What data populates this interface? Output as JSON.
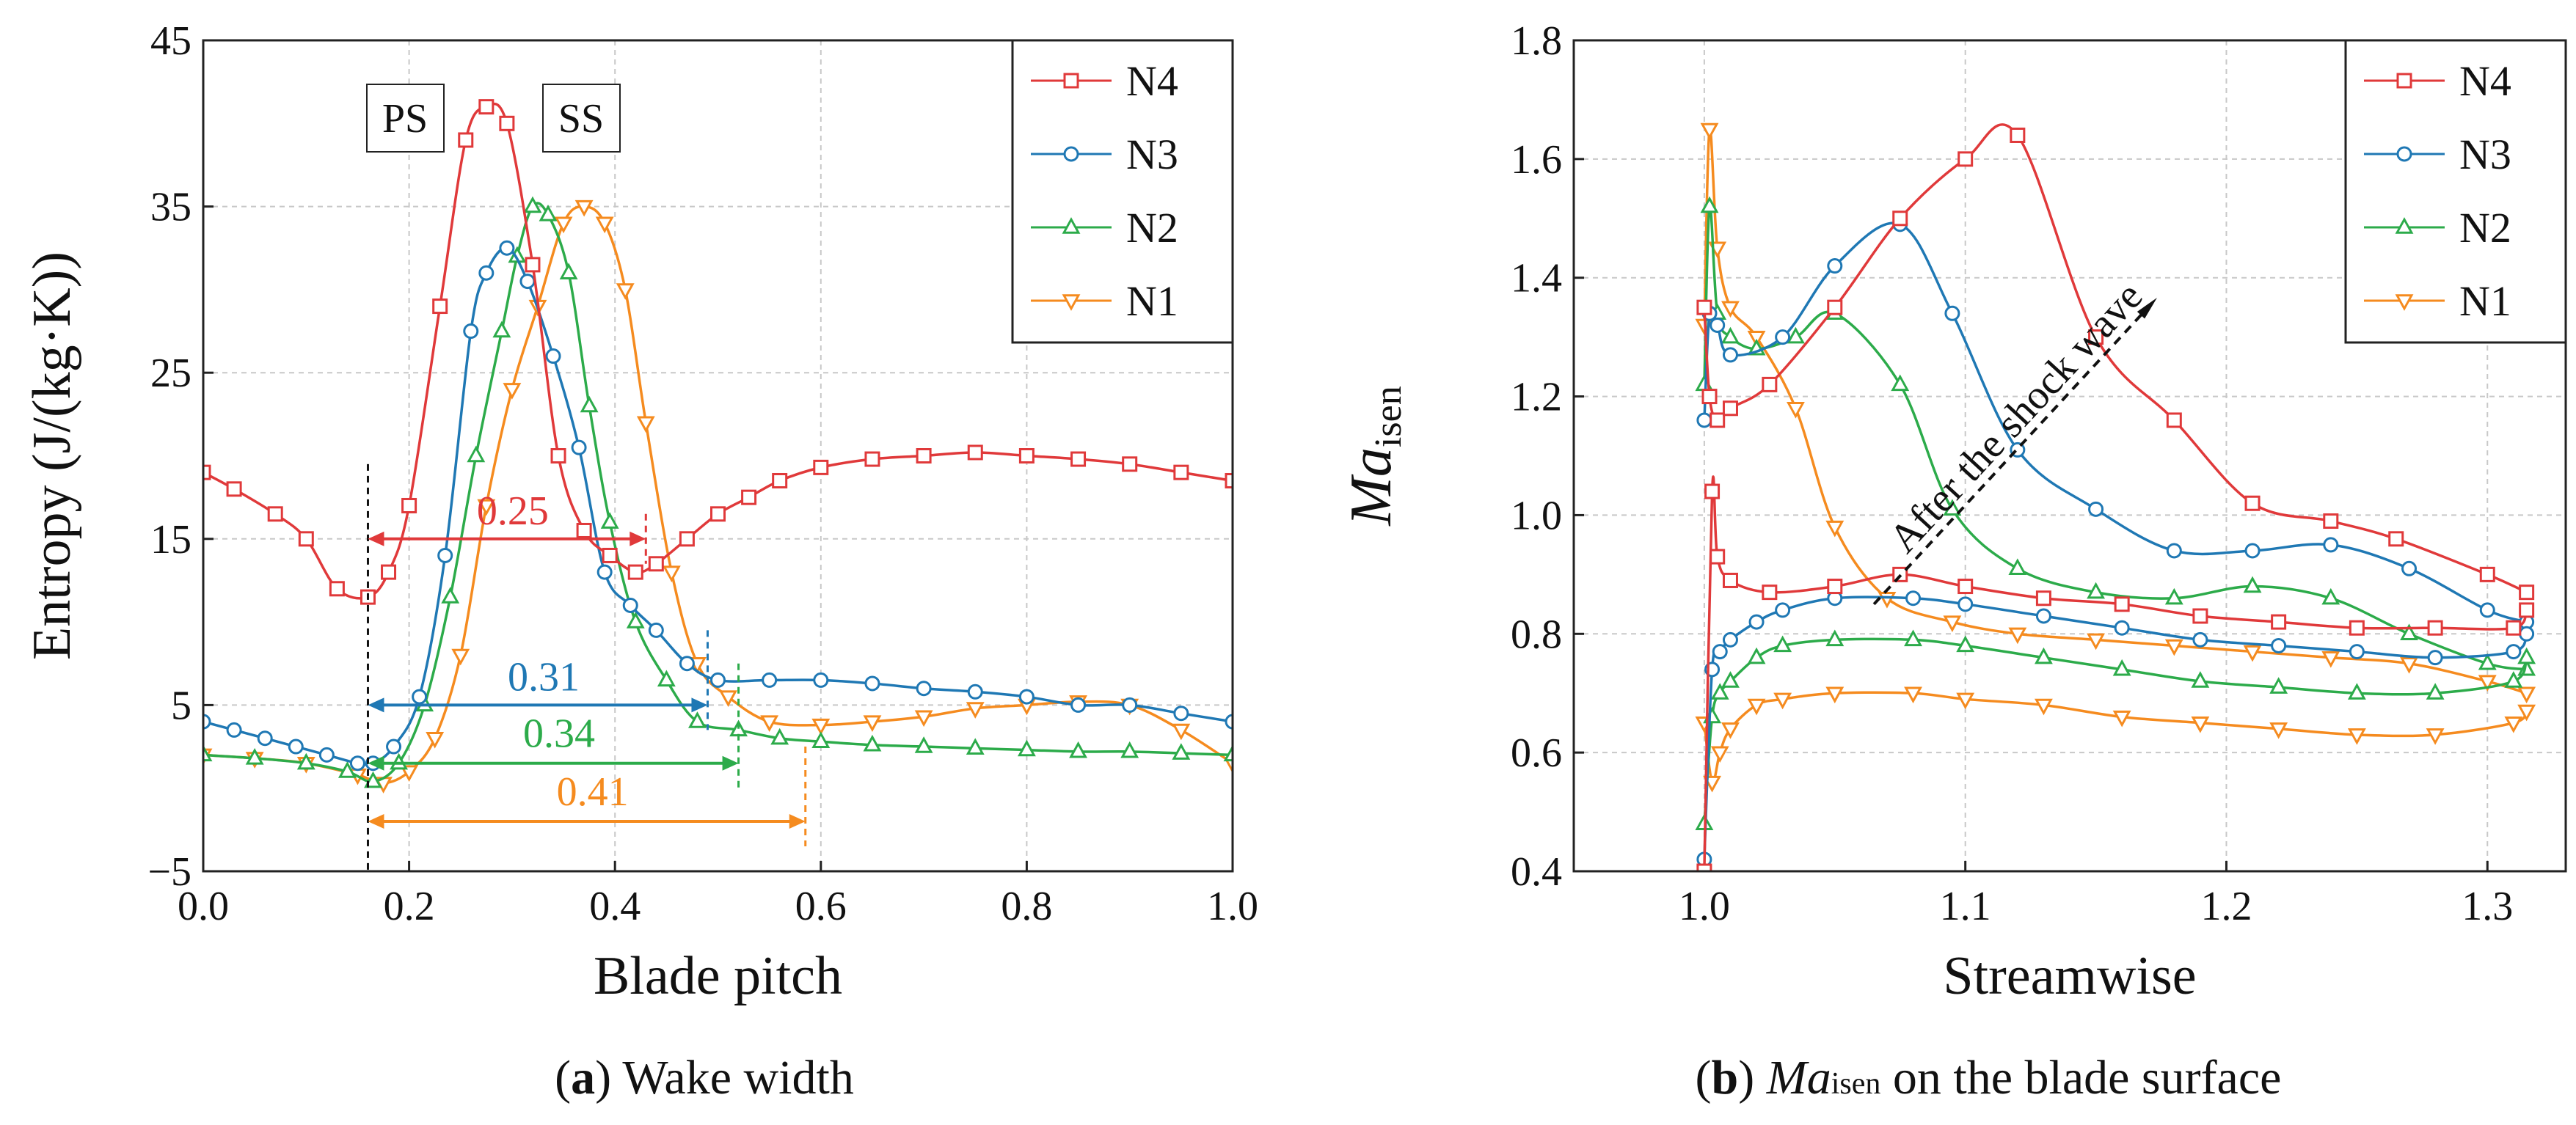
{
  "colors": {
    "N4": "#e0393a",
    "N3": "#1f78b4",
    "N2": "#2cab4a",
    "N1": "#f58b1f"
  },
  "captions": {
    "a": {
      "letter": "a",
      "text": "Wake width"
    },
    "b": {
      "letter": "b",
      "text_pre": "Ma",
      "text_sub": "isen",
      "text_post": "on the blade surface"
    }
  },
  "chart_data": [
    {
      "type": "line",
      "id": "a",
      "xlabel": "Blade pitch",
      "ylabel": "Entropy (J/(kg·K))",
      "xlim": [
        0,
        1
      ],
      "ylim": [
        -5,
        45
      ],
      "xticks": [
        0,
        0.2,
        0.4,
        0.6,
        0.8,
        1.0
      ],
      "xtick_labels": [
        "0.0",
        "0.2",
        "0.4",
        "0.6",
        "0.8",
        "1.0"
      ],
      "yticks": [
        -5,
        5,
        15,
        25,
        35,
        45
      ],
      "ytick_labels": [
        "−5",
        "5",
        "15",
        "25",
        "35",
        "45"
      ],
      "grid": true,
      "legend": "top-right",
      "series": [
        {
          "name": "N4",
          "marker": "square",
          "color": "#e0393a",
          "x": [
            0,
            0.03,
            0.07,
            0.1,
            0.13,
            0.16,
            0.18,
            0.2,
            0.23,
            0.255,
            0.275,
            0.295,
            0.32,
            0.345,
            0.37,
            0.395,
            0.42,
            0.44,
            0.47,
            0.5,
            0.53,
            0.56,
            0.6,
            0.65,
            0.7,
            0.75,
            0.8,
            0.85,
            0.9,
            0.95,
            1.0
          ],
          "y": [
            19,
            18,
            16.5,
            15,
            12,
            11.5,
            13,
            17,
            29,
            39,
            41,
            40,
            31.5,
            20,
            15.5,
            14,
            13,
            13.5,
            15,
            16.5,
            17.5,
            18.5,
            19.3,
            19.8,
            20,
            20.2,
            20,
            19.8,
            19.5,
            19,
            18.5
          ]
        },
        {
          "name": "N3",
          "marker": "circle",
          "color": "#1f78b4",
          "x": [
            0,
            0.03,
            0.06,
            0.09,
            0.12,
            0.15,
            0.165,
            0.185,
            0.21,
            0.235,
            0.26,
            0.275,
            0.295,
            0.315,
            0.34,
            0.365,
            0.39,
            0.415,
            0.44,
            0.47,
            0.5,
            0.55,
            0.6,
            0.65,
            0.7,
            0.75,
            0.8,
            0.85,
            0.9,
            0.95,
            1.0
          ],
          "y": [
            4,
            3.5,
            3,
            2.5,
            2,
            1.5,
            1.5,
            2.5,
            5.5,
            14,
            27.5,
            31,
            32.5,
            30.5,
            26,
            20.5,
            13,
            11,
            9.5,
            7.5,
            6.5,
            6.5,
            6.5,
            6.3,
            6,
            5.8,
            5.5,
            5,
            5,
            4.5,
            4
          ]
        },
        {
          "name": "N2",
          "marker": "triangle-up",
          "color": "#2cab4a",
          "x": [
            0,
            0.05,
            0.1,
            0.14,
            0.165,
            0.19,
            0.215,
            0.24,
            0.265,
            0.29,
            0.305,
            0.32,
            0.335,
            0.355,
            0.375,
            0.395,
            0.42,
            0.45,
            0.48,
            0.52,
            0.56,
            0.6,
            0.65,
            0.7,
            0.75,
            0.8,
            0.85,
            0.9,
            0.95,
            1.0
          ],
          "y": [
            2,
            1.8,
            1.5,
            1,
            0.4,
            1.5,
            5,
            11.5,
            20,
            27.5,
            32,
            35,
            34.5,
            31,
            23,
            16,
            10,
            6.5,
            4,
            3.5,
            3,
            2.8,
            2.6,
            2.5,
            2.4,
            2.3,
            2.2,
            2.2,
            2.1,
            2
          ]
        },
        {
          "name": "N1",
          "marker": "triangle-down",
          "color": "#f58b1f",
          "x": [
            0,
            0.05,
            0.1,
            0.15,
            0.175,
            0.2,
            0.225,
            0.25,
            0.275,
            0.3,
            0.325,
            0.35,
            0.37,
            0.39,
            0.41,
            0.43,
            0.455,
            0.48,
            0.51,
            0.55,
            0.6,
            0.65,
            0.7,
            0.75,
            0.8,
            0.85,
            0.9,
            0.95,
            1.0
          ],
          "y": [
            2,
            1.8,
            1.5,
            0.8,
            0.3,
            1,
            3,
            8,
            17,
            24,
            29,
            34,
            35,
            34,
            30,
            22,
            13,
            7.5,
            5.5,
            4,
            3.8,
            4,
            4.3,
            4.8,
            5,
            5.2,
            5,
            3.5,
            1.5
          ]
        }
      ],
      "labels": {
        "ps": "PS",
        "ss": "SS"
      },
      "annotations": [
        {
          "text": "0.25",
          "color": "#e0393a",
          "from": 0.16,
          "to": 0.43,
          "y": 15
        },
        {
          "text": "0.31",
          "color": "#1f78b4",
          "from": 0.16,
          "to": 0.49,
          "y": 5
        },
        {
          "text": "0.34",
          "color": "#2cab4a",
          "from": 0.16,
          "to": 0.52,
          "y": 1.5
        },
        {
          "text": "0.41",
          "color": "#f58b1f",
          "from": 0.16,
          "to": 0.585,
          "y": -2
        }
      ]
    },
    {
      "type": "line",
      "id": "b",
      "xlabel": "Streamwise",
      "ylabel_main": "Ma",
      "ylabel_sub": "isen",
      "xlim": [
        0.95,
        1.33
      ],
      "ylim": [
        0.4,
        1.8
      ],
      "xticks": [
        1.0,
        1.1,
        1.2,
        1.3
      ],
      "xtick_labels": [
        "1.0",
        "1.1",
        "1.2",
        "1.3"
      ],
      "yticks": [
        0.4,
        0.6,
        0.8,
        1.0,
        1.2,
        1.4,
        1.6,
        1.8
      ],
      "ytick_labels": [
        "0.4",
        "0.6",
        "0.8",
        "1.0",
        "1.2",
        "1.4",
        "1.6",
        "1.8"
      ],
      "grid": true,
      "legend": "top-right",
      "annotation": "After the shock wave",
      "series": [
        {
          "name": "N4",
          "marker": "square",
          "color": "#e0393a",
          "upper": {
            "x": [
              1.0,
              1.002,
              1.005,
              1.01,
              1.025,
              1.05,
              1.075,
              1.1,
              1.12,
              1.15,
              1.18,
              1.21,
              1.24,
              1.265,
              1.3,
              1.315
            ],
            "y": [
              1.35,
              1.2,
              1.16,
              1.18,
              1.22,
              1.35,
              1.5,
              1.6,
              1.64,
              1.3,
              1.16,
              1.02,
              0.99,
              0.96,
              0.9,
              0.87
            ]
          },
          "lower": {
            "x": [
              1.0,
              1.003,
              1.005,
              1.01,
              1.025,
              1.05,
              1.075,
              1.1,
              1.13,
              1.16,
              1.19,
              1.22,
              1.25,
              1.28,
              1.31,
              1.315
            ],
            "y": [
              0.4,
              1.04,
              0.93,
              0.89,
              0.87,
              0.88,
              0.9,
              0.88,
              0.86,
              0.85,
              0.83,
              0.82,
              0.81,
              0.81,
              0.81,
              0.84
            ]
          }
        },
        {
          "name": "N3",
          "marker": "circle",
          "color": "#1f78b4",
          "upper": {
            "x": [
              1.0,
              1.002,
              1.005,
              1.01,
              1.03,
              1.05,
              1.075,
              1.095,
              1.12,
              1.15,
              1.18,
              1.21,
              1.24,
              1.27,
              1.3,
              1.315
            ],
            "y": [
              1.16,
              1.34,
              1.32,
              1.27,
              1.3,
              1.42,
              1.49,
              1.34,
              1.11,
              1.01,
              0.94,
              0.94,
              0.95,
              0.91,
              0.84,
              0.82
            ]
          },
          "lower": {
            "x": [
              1.0,
              1.003,
              1.006,
              1.01,
              1.02,
              1.03,
              1.05,
              1.08,
              1.1,
              1.13,
              1.16,
              1.19,
              1.22,
              1.25,
              1.28,
              1.31,
              1.315
            ],
            "y": [
              0.42,
              0.74,
              0.77,
              0.79,
              0.82,
              0.84,
              0.86,
              0.86,
              0.85,
              0.83,
              0.81,
              0.79,
              0.78,
              0.77,
              0.76,
              0.77,
              0.8
            ]
          }
        },
        {
          "name": "N2",
          "marker": "triangle-up",
          "color": "#2cab4a",
          "upper": {
            "x": [
              1.0,
              1.002,
              1.005,
              1.01,
              1.02,
              1.035,
              1.05,
              1.075,
              1.095,
              1.12,
              1.15,
              1.18,
              1.21,
              1.24,
              1.27,
              1.3,
              1.315
            ],
            "y": [
              1.22,
              1.52,
              1.34,
              1.3,
              1.28,
              1.3,
              1.34,
              1.22,
              1.01,
              0.91,
              0.87,
              0.86,
              0.88,
              0.86,
              0.8,
              0.75,
              0.74
            ]
          },
          "lower": {
            "x": [
              1.0,
              1.003,
              1.006,
              1.01,
              1.02,
              1.03,
              1.05,
              1.08,
              1.1,
              1.13,
              1.16,
              1.19,
              1.22,
              1.25,
              1.28,
              1.31,
              1.315
            ],
            "y": [
              0.48,
              0.66,
              0.7,
              0.72,
              0.76,
              0.78,
              0.79,
              0.79,
              0.78,
              0.76,
              0.74,
              0.72,
              0.71,
              0.7,
              0.7,
              0.72,
              0.76
            ]
          }
        },
        {
          "name": "N1",
          "marker": "triangle-down",
          "color": "#f58b1f",
          "upper": {
            "x": [
              1.0,
              1.002,
              1.005,
              1.01,
              1.02,
              1.035,
              1.05,
              1.07,
              1.095,
              1.12,
              1.15,
              1.18,
              1.21,
              1.24,
              1.27,
              1.3,
              1.315
            ],
            "y": [
              1.32,
              1.65,
              1.45,
              1.35,
              1.3,
              1.18,
              0.98,
              0.86,
              0.82,
              0.8,
              0.79,
              0.78,
              0.77,
              0.76,
              0.75,
              0.72,
              0.7
            ]
          },
          "lower": {
            "x": [
              1.0,
              1.003,
              1.006,
              1.01,
              1.02,
              1.03,
              1.05,
              1.08,
              1.1,
              1.13,
              1.16,
              1.19,
              1.22,
              1.25,
              1.28,
              1.31,
              1.315
            ],
            "y": [
              0.65,
              0.55,
              0.6,
              0.64,
              0.68,
              0.69,
              0.7,
              0.7,
              0.69,
              0.68,
              0.66,
              0.65,
              0.64,
              0.63,
              0.63,
              0.65,
              0.67
            ]
          }
        }
      ]
    }
  ]
}
